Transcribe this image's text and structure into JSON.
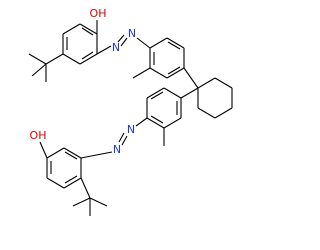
{
  "atoms": [
    {
      "label": "OH"
    },
    {
      "label": "N"
    },
    {
      "label": "N"
    },
    {
      "label": "OH"
    },
    {
      "label": "N"
    },
    {
      "label": "N"
    }
  ]
}
